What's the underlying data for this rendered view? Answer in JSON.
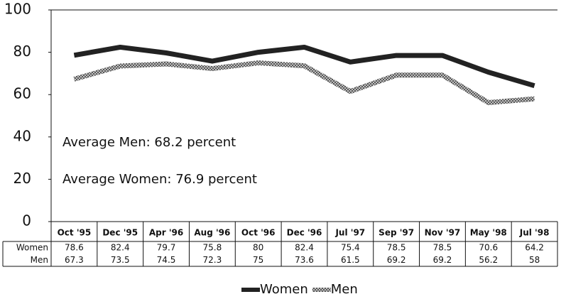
{
  "chart_data": {
    "type": "line",
    "categories": [
      "Oct '95",
      "Dec '95",
      "Apr '96",
      "Aug '96",
      "Oct '96",
      "Dec '96",
      "Jul '97",
      "Sep '97",
      "Nov '97",
      "May '98",
      "Jul '98"
    ],
    "series": [
      {
        "name": "Women",
        "color": "#222222",
        "values": [
          78.6,
          82.4,
          79.7,
          75.8,
          80,
          82.4,
          75.4,
          78.5,
          78.5,
          70.6,
          64.2
        ]
      },
      {
        "name": "Men",
        "color": "#777777",
        "values": [
          67.3,
          73.5,
          74.5,
          72.3,
          75,
          73.6,
          61.5,
          69.2,
          69.2,
          56.2,
          58
        ]
      }
    ],
    "ylim": [
      0,
      100
    ],
    "yticks": [
      0,
      20,
      40,
      60,
      80,
      100
    ],
    "annotations": [
      "Average Men: 68.2 percent",
      "Average Women:  76.9 percent"
    ]
  }
}
